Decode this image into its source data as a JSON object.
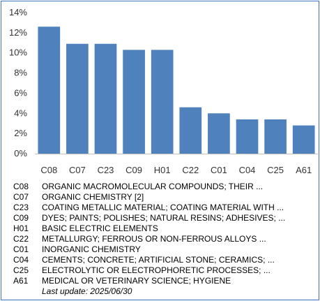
{
  "chart_data": {
    "type": "bar",
    "categories": [
      "C08",
      "C07",
      "C23",
      "C09",
      "H01",
      "C22",
      "C01",
      "C04",
      "C25",
      "A61"
    ],
    "values": [
      12.6,
      10.9,
      10.9,
      10.3,
      10.3,
      4.6,
      4.0,
      3.4,
      3.4,
      2.8
    ],
    "ylim": [
      0,
      14
    ],
    "yticks": [
      "0%",
      "2%",
      "4%",
      "6%",
      "8%",
      "10%",
      "12%",
      "14%"
    ],
    "grid": false,
    "color": "#4f81bd"
  },
  "legend": [
    {
      "code": "C08",
      "desc": "ORGANIC MACROMOLECULAR COMPOUNDS; THEIR ..."
    },
    {
      "code": "C07",
      "desc": "ORGANIC CHEMISTRY [2]"
    },
    {
      "code": "C23",
      "desc": "COATING METALLIC MATERIAL; COATING MATERIAL WITH ..."
    },
    {
      "code": "C09",
      "desc": "DYES; PAINTS; POLISHES; NATURAL RESINS; ADHESIVES; ..."
    },
    {
      "code": "H01",
      "desc": "BASIC ELECTRIC ELEMENTS"
    },
    {
      "code": "C22",
      "desc": "METALLURGY; FERROUS OR NON-FERROUS ALLOYS ..."
    },
    {
      "code": "C01",
      "desc": "INORGANIC CHEMISTRY"
    },
    {
      "code": "C04",
      "desc": "CEMENTS; CONCRETE; ARTIFICIAL STONE; CERAMICS; ..."
    },
    {
      "code": "C25",
      "desc": "ELECTROLYTIC OR ELECTROPHORETIC PROCESSES; ..."
    },
    {
      "code": "A61",
      "desc": "MEDICAL OR VETERINARY SCIENCE; HYGIENE"
    }
  ],
  "footer": {
    "last_update": "Last update:  2025/06/30"
  }
}
